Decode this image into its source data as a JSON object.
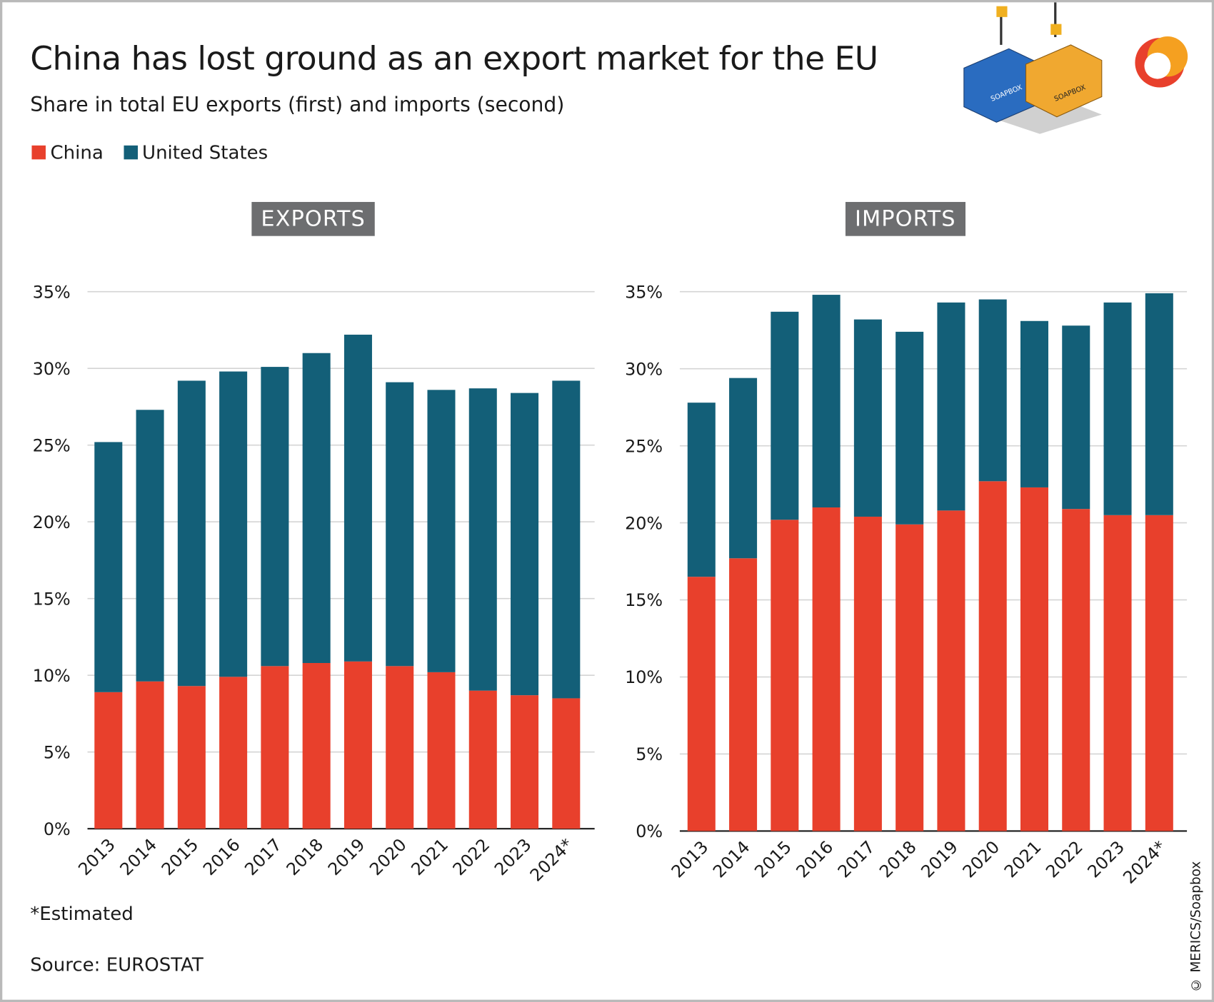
{
  "title": "China has lost ground as an export market for the EU",
  "subtitle": "Share in total EU exports (first) and imports (second)",
  "legend": [
    {
      "label": "China",
      "color": "#e8402c"
    },
    {
      "label": "United States",
      "color": "#135f78"
    }
  ],
  "logo_text": "SOAPBOX",
  "footnote": "*Estimated",
  "source": "Source: EUROSTAT",
  "copyright": "© MERICS/Soapbox",
  "chart_data": [
    {
      "type": "bar",
      "stacked": true,
      "title": "EXPORTS",
      "categories": [
        "2013",
        "2014",
        "2015",
        "2016",
        "2017",
        "2018",
        "2019",
        "2020",
        "2021",
        "2022",
        "2023",
        "2024*"
      ],
      "ylim": [
        0,
        35
      ],
      "yticks": [
        "0%",
        "5%",
        "10%",
        "15%",
        "20%",
        "25%",
        "30%",
        "35%"
      ],
      "grid": true,
      "series": [
        {
          "name": "China",
          "color": "#e8402c",
          "values": [
            8.9,
            9.6,
            9.3,
            9.9,
            10.6,
            10.8,
            10.9,
            10.6,
            10.2,
            9.0,
            8.7,
            8.5
          ]
        },
        {
          "name": "United States",
          "color": "#135f78",
          "values": [
            16.3,
            17.7,
            19.9,
            19.9,
            19.5,
            20.2,
            21.3,
            18.5,
            18.4,
            19.7,
            19.7,
            20.7
          ]
        }
      ]
    },
    {
      "type": "bar",
      "stacked": true,
      "title": "IMPORTS",
      "categories": [
        "2013",
        "2014",
        "2015",
        "2016",
        "2017",
        "2018",
        "2019",
        "2020",
        "2021",
        "2022",
        "2023",
        "2024*"
      ],
      "ylim": [
        0,
        35
      ],
      "yticks": [
        "0%",
        "5%",
        "10%",
        "15%",
        "20%",
        "25%",
        "30%",
        "35%"
      ],
      "grid": true,
      "series": [
        {
          "name": "China",
          "color": "#e8402c",
          "values": [
            16.5,
            17.7,
            20.2,
            21.0,
            20.4,
            19.9,
            20.8,
            22.7,
            22.3,
            20.9,
            20.5,
            20.5
          ]
        },
        {
          "name": "United States",
          "color": "#135f78",
          "values": [
            11.3,
            11.7,
            13.5,
            13.8,
            12.8,
            12.5,
            13.5,
            11.8,
            10.8,
            11.9,
            13.8,
            14.4
          ]
        }
      ]
    }
  ]
}
